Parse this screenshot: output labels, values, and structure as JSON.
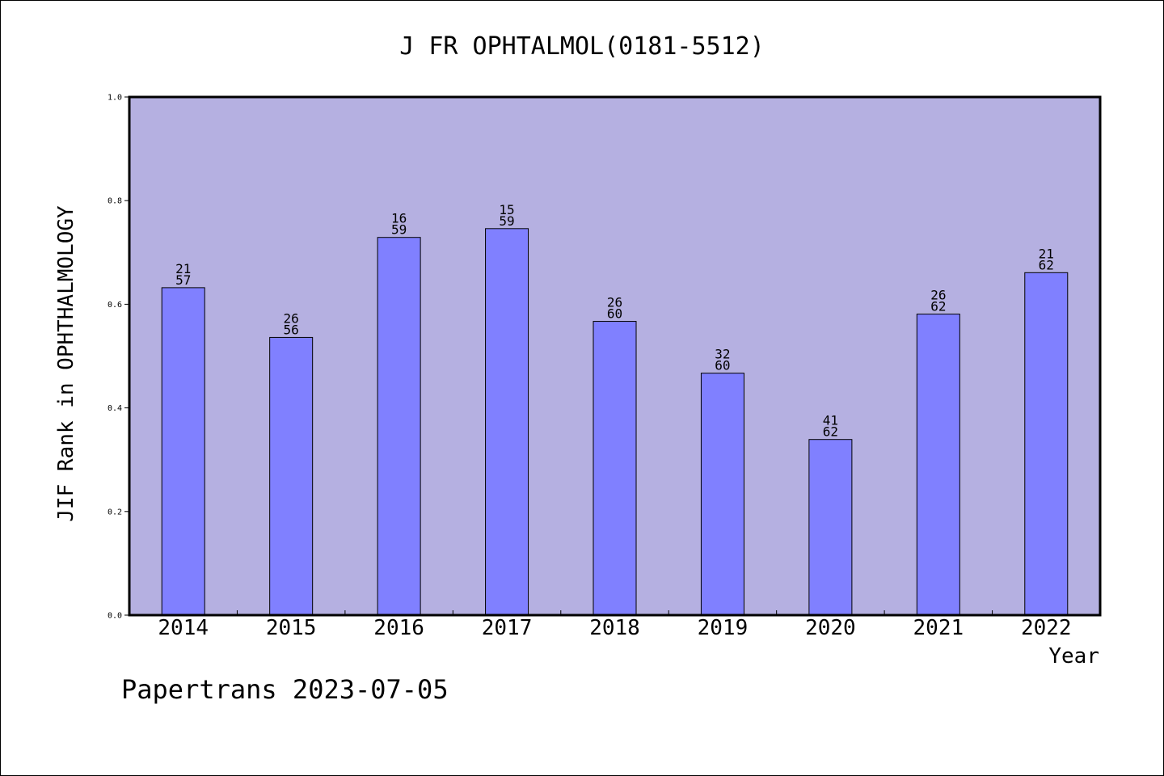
{
  "chart_data": {
    "type": "bar",
    "title": "J FR OPHTALMOL(0181-5512)",
    "xlabel": "Year",
    "ylabel": "JIF Rank in OPHTHALMOLOGY",
    "ylim": [
      0,
      1.0
    ],
    "yticks": [
      "0.0",
      "0.2",
      "0.4",
      "0.6",
      "0.8",
      "1.0"
    ],
    "categories": [
      "2014",
      "2015",
      "2016",
      "2017",
      "2018",
      "2019",
      "2020",
      "2021",
      "2022"
    ],
    "values": [
      0.632,
      0.536,
      0.729,
      0.746,
      0.567,
      0.467,
      0.339,
      0.581,
      0.661
    ],
    "bar_labels": [
      [
        "21",
        "57"
      ],
      [
        "26",
        "56"
      ],
      [
        "16",
        "59"
      ],
      [
        "15",
        "59"
      ],
      [
        "26",
        "60"
      ],
      [
        "32",
        "60"
      ],
      [
        "41",
        "62"
      ],
      [
        "26",
        "62"
      ],
      [
        "21",
        "62"
      ]
    ],
    "grid": false,
    "colors": {
      "plot_background": "#b5b0e1",
      "bar_fill": "#8080ff",
      "bar_stroke": "#000000"
    }
  },
  "footer": {
    "text": "Papertrans 2023-07-05"
  }
}
